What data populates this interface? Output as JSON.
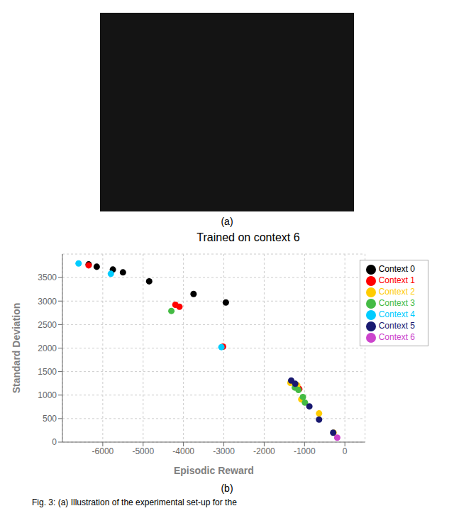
{
  "chart_data": {
    "type": "scatter",
    "title": "Trained on context 6",
    "xlabel": "Episodic Reward",
    "ylabel": "Standard Deviation",
    "xlim": [
      -7000,
      500
    ],
    "ylim": [
      0,
      4000
    ],
    "xticks": [
      -6000,
      -5000,
      -4000,
      -3000,
      -2000,
      -1000,
      0
    ],
    "yticks": [
      0,
      500,
      1000,
      1500,
      2000,
      2500,
      3000,
      3500
    ],
    "grid": true,
    "legend": "upper right",
    "annotations": [
      "(a)",
      "(b)",
      "Fig. 3: (a) Illustration of the experimental set-up for the"
    ],
    "series": [
      {
        "name": "Context 0",
        "color": "#000000",
        "x": [
          -6350,
          -6150,
          -5750,
          -5500,
          -4850,
          -3750,
          -2950
        ],
        "values": [
          3780,
          3730,
          3670,
          3610,
          3420,
          3150,
          2970
        ]
      },
      {
        "name": "Context 1",
        "color": "#ff0000",
        "x": [
          -6350,
          -4200,
          -4100,
          -3020,
          -1130
        ],
        "values": [
          3760,
          2920,
          2880,
          2030,
          1130
        ]
      },
      {
        "name": "Context 2",
        "color": "#ffcc00",
        "x": [
          -1350,
          -1180,
          -1080,
          -640,
          -280
        ],
        "values": [
          1260,
          1210,
          910,
          610,
          200
        ]
      },
      {
        "name": "Context 3",
        "color": "#44bb44",
        "x": [
          -4300,
          -1240,
          -1150,
          -1040,
          -990
        ],
        "values": [
          2790,
          1160,
          1110,
          960,
          840
        ]
      },
      {
        "name": "Context 4",
        "color": "#00ccff",
        "x": [
          -6600,
          -5800,
          -3060
        ],
        "values": [
          3800,
          3580,
          2020
        ]
      },
      {
        "name": "Context 5",
        "color": "#191970",
        "x": [
          -1330,
          -1230,
          -880,
          -640,
          -290
        ],
        "values": [
          1310,
          1240,
          760,
          480,
          200
        ]
      },
      {
        "name": "Context 6",
        "color": "#cc44cc",
        "x": [
          -190
        ],
        "values": [
          95
        ]
      }
    ]
  }
}
